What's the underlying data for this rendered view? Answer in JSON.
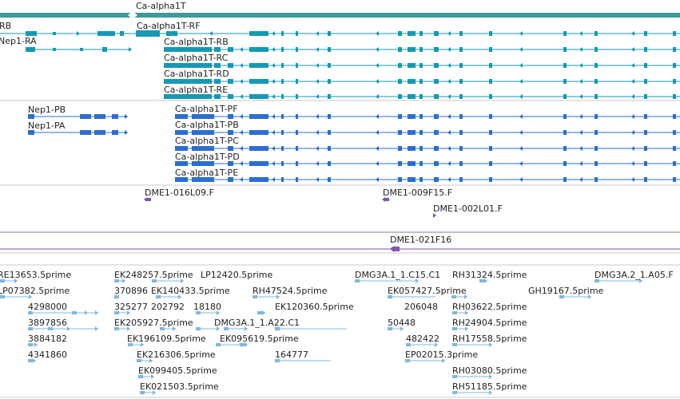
{
  "gene": {
    "name": "Ca-alpha1T",
    "color": "#3d9a9a"
  },
  "colors": {
    "cyan_transcript": "#1699b4",
    "blue_transcript": "#2a6ed1",
    "purple_marker": "#7b56a8",
    "est_feature": "#7fb7e0",
    "divider": "#c8c8c8",
    "dark_divider": "#8c7a9c"
  },
  "tracks": {
    "transcripts_cyan": {
      "labels": [
        "RB",
        "Nep1-RA",
        "Ca-alpha1T-RF",
        "Ca-alpha1T-RB",
        "Ca-alpha1T-RC",
        "Ca-alpha1T-RD",
        "Ca-alpha1T-RE"
      ]
    },
    "transcripts_blue": {
      "labels": [
        "Nep1-PB",
        "Nep1-PA",
        "Ca-alpha1T-PF",
        "Ca-alpha1T-PB",
        "Ca-alpha1T-PC",
        "Ca-alpha1T-PD",
        "Ca-alpha1T-PE"
      ]
    },
    "clones": {
      "labels": [
        "DME1-016L09.F",
        "DME1-009F15.F",
        "DME1-002L01.F"
      ]
    },
    "clone_single": {
      "labels": [
        "DME1-021F16"
      ]
    },
    "ests": {
      "labels": [
        "RE13653.5prime",
        "LP07382.5prime",
        "4298000",
        "3897856",
        "3884182",
        "4341860",
        "EK248257.5prime",
        "LP12420.5prime",
        "370896",
        "EK140433.5prime",
        "325277",
        "202792",
        "18180",
        "EK205927.5prime",
        "EK196109.5prime",
        "EK216306.5prime",
        "EK099405.5prime",
        "EK021503.5prime",
        "RH47524.5prime",
        "DMG3A.1_1.A22.C1",
        "EK095619.5prime",
        "164777",
        "DMG3A.1_1.C15.C1",
        "EK120360.5prime",
        "EK057427.5prime",
        "206048",
        "50448",
        "482422",
        "EP02015.3prime",
        "RH31324.5prime",
        "RH03622.5prime",
        "RH24904.5prime",
        "RH17558.5prime",
        "RH03080.5prime",
        "RH51185.5prime",
        "GH19167.5prime",
        "DMG3A.2_1.A05.F"
      ]
    }
  }
}
